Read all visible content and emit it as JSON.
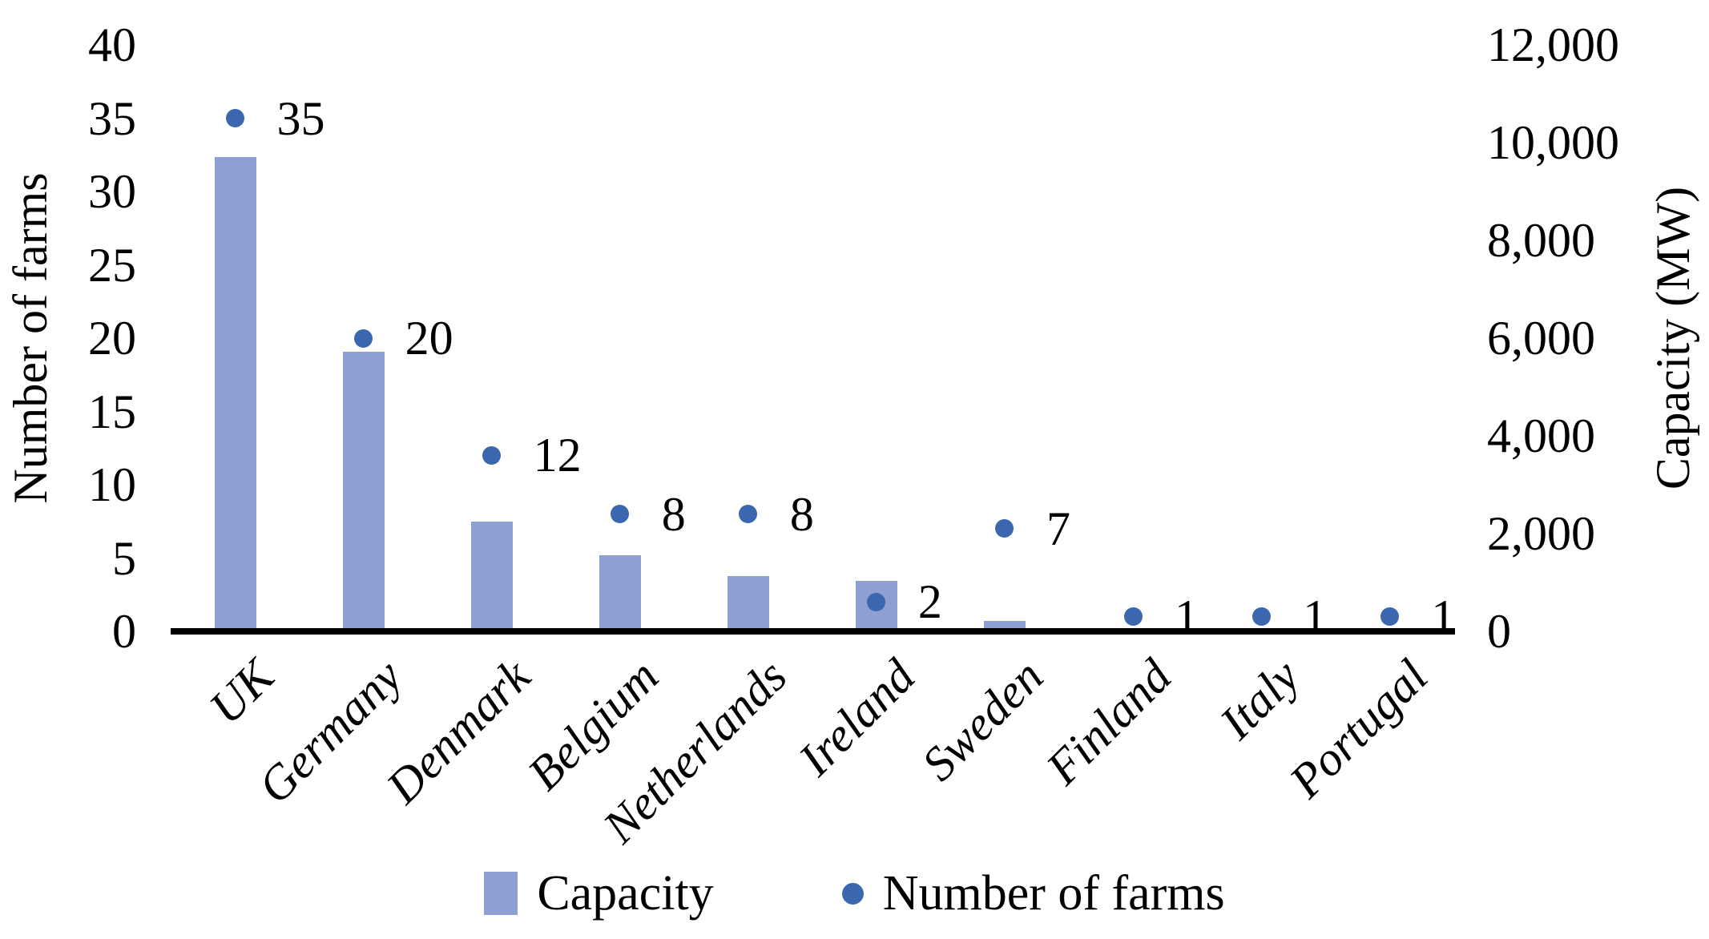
{
  "chart_data": {
    "type": "bar",
    "subtype": "combo-bar-and-scatter",
    "title": "",
    "categories": [
      "UK",
      "Germany",
      "Denmark",
      "Belgium",
      "Netherlands",
      "Ireland",
      "Sweden",
      "Finland",
      "Italy",
      "Portugal"
    ],
    "series": [
      {
        "name": "Capacity",
        "type": "bar",
        "axis": "right",
        "unit": "MW",
        "color": "#8E9FD3",
        "values": [
          9700,
          5720,
          2250,
          1560,
          1130,
          1030,
          220,
          0,
          0,
          0
        ]
      },
      {
        "name": "Number of farms",
        "type": "scatter",
        "axis": "left",
        "color": "#3A67AE",
        "values": [
          35,
          20,
          12,
          8,
          8,
          2,
          7,
          1,
          1,
          1
        ],
        "data_labels": [
          "35",
          "20",
          "12",
          "8",
          "8",
          "2",
          "7",
          "1",
          "1",
          "1"
        ]
      }
    ],
    "axes": {
      "left": {
        "title": "Number of farms",
        "min": 0,
        "max": 40,
        "tick_step": 5,
        "tick_labels": [
          "0",
          "5",
          "10",
          "15",
          "20",
          "25",
          "30",
          "35",
          "40"
        ]
      },
      "right": {
        "title": "Capacity (MW)",
        "min": 0,
        "max": 12000,
        "tick_step": 2000,
        "tick_labels": [
          "0",
          "2,000",
          "4,000",
          "6,000",
          "8,000",
          "10,000",
          "12,000"
        ]
      }
    },
    "legend": {
      "position": "bottom-center",
      "items": [
        {
          "label": "Capacity",
          "marker": "square"
        },
        {
          "label": "Number of farms",
          "marker": "dot"
        }
      ]
    },
    "grid": false,
    "colors": {
      "bar": "#8E9FD3",
      "dot": "#3A67AE",
      "axis_line": "#000000",
      "text": "#000000",
      "background": "#FFFFFF"
    }
  }
}
